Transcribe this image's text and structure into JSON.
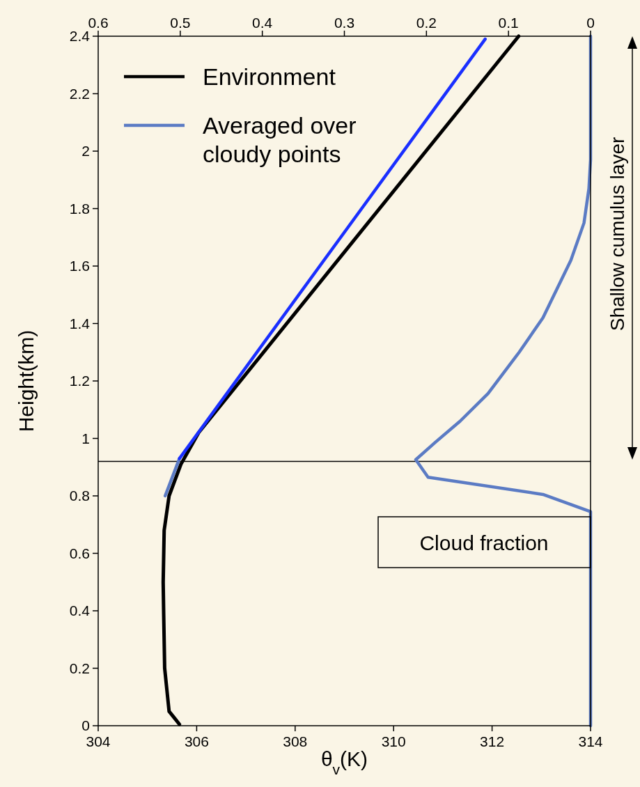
{
  "chart_data": {
    "type": "line",
    "xlabel": "θ$_{v}$(K)",
    "ylabel": "Height(km)",
    "xlim": [
      304,
      314
    ],
    "xticks": [
      304,
      306,
      308,
      310,
      312,
      314
    ],
    "x2lim": [
      0.6,
      0
    ],
    "x2ticks": [
      0.6,
      0.5,
      0.4,
      0.3,
      0.2,
      0.1,
      0
    ],
    "ylim": [
      0,
      2.4
    ],
    "yticks": [
      0,
      0.2,
      0.4,
      0.6,
      0.8,
      1,
      1.2,
      1.4,
      1.6,
      1.8,
      2,
      2.2,
      2.4
    ],
    "legend": "top left",
    "series": [
      {
        "name": "Environment",
        "color": "#000000",
        "x": [
          305.65,
          305.44,
          305.35,
          305.33,
          305.32,
          305.34,
          305.44,
          305.68,
          306.04,
          312.54
        ],
        "values": [
          0.005,
          0.05,
          0.2,
          0.39,
          0.5,
          0.68,
          0.8,
          0.91,
          1.02,
          2.4
        ]
      },
      {
        "name": "Averaged over cloudy points",
        "color": "#5b7bc4",
        "x": [
          305.36,
          305.65
        ],
        "values": [
          0.8,
          0.93
        ]
      },
      {
        "color": "#1a2fff",
        "x": [
          305.65,
          311.86
        ],
        "values": [
          0.93,
          2.39
        ]
      },
      {
        "color": "#5b7bc4",
        "axis": "x2",
        "x": [
          0,
          0,
          0.058,
          0.198,
          0.213,
          0.189,
          0.159,
          0.125,
          0.087,
          0.058,
          0.041,
          0.024,
          0.008,
          0.002,
          0,
          0
        ],
        "values": [
          0,
          0.745,
          0.805,
          0.865,
          0.926,
          0.987,
          1.06,
          1.156,
          1.3,
          1.42,
          1.52,
          1.62,
          1.75,
          1.87,
          1.97,
          2.4
        ]
      }
    ],
    "ref_lines": [
      {
        "axis": "y",
        "value": 0.92,
        "color": "#000000"
      }
    ],
    "annotations": [
      "Cloud fraction",
      "Shallow cumulus layer"
    ]
  }
}
